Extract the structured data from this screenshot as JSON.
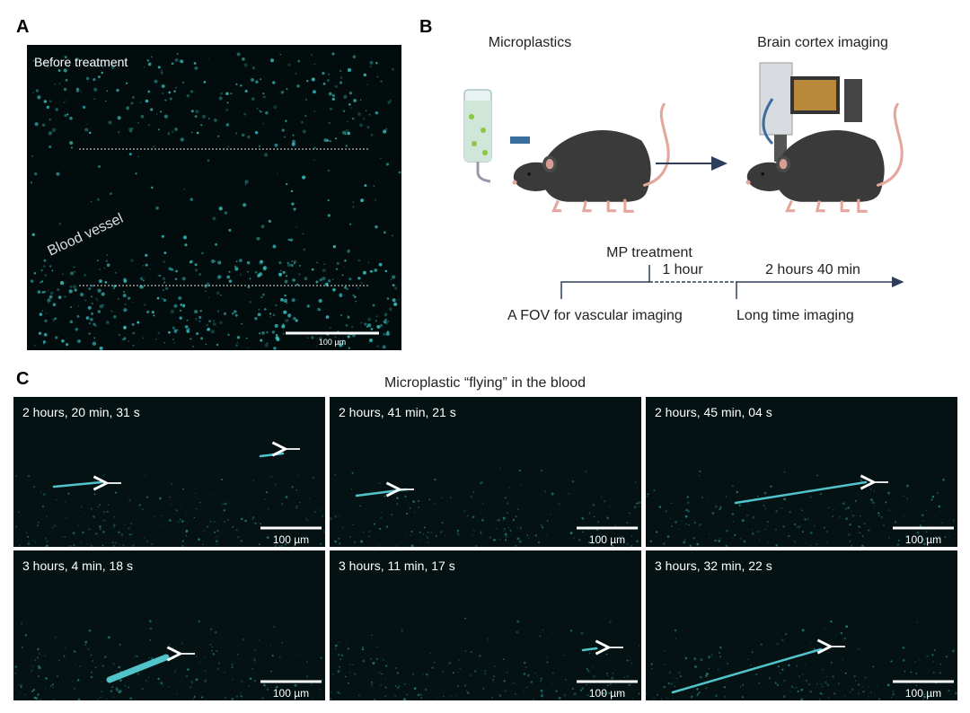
{
  "panel_a": {
    "label": "A",
    "caption": "Before treatment",
    "annotation": "Blood vessel",
    "scale_bar": "100 µm"
  },
  "panel_b": {
    "label": "B",
    "left_title": "Microplastics",
    "right_title": "Brain cortex imaging",
    "timeline": {
      "event": "MP treatment",
      "interval_1": "1 hour",
      "interval_2": "2 hours 40 min",
      "start_label": "A FOV for vascular imaging",
      "end_label": "Long time imaging"
    }
  },
  "panel_c": {
    "label": "C",
    "title": "Microplastic “flying” in the blood",
    "frames": [
      {
        "time": "2 hours, 20 min, 31 s",
        "scale_bar": "100 µm"
      },
      {
        "time": "2 hours, 41 min, 21 s",
        "scale_bar": "100 µm"
      },
      {
        "time": "2 hours, 45 min, 04 s",
        "scale_bar": "100 µm"
      },
      {
        "time": "3 hours, 4 min, 18 s",
        "scale_bar": "100 µm"
      },
      {
        "time": "3 hours, 11 min, 17 s",
        "scale_bar": "100 µm"
      },
      {
        "time": "3 hours, 32 min, 22 s",
        "scale_bar": "100 µm"
      }
    ]
  }
}
